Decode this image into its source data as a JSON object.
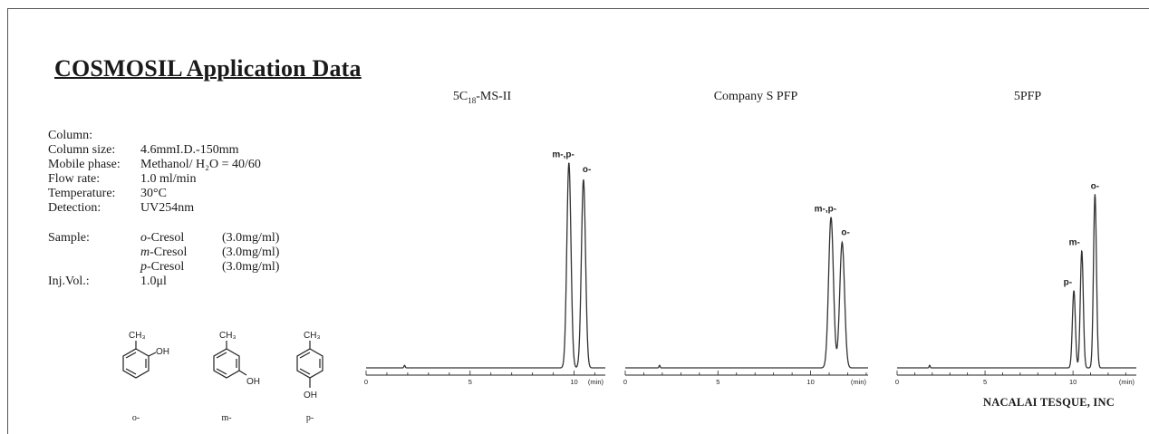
{
  "header": {
    "title": "COSMOSIL Application Data"
  },
  "conditions": {
    "rows": [
      {
        "label": "Column:",
        "value": ""
      },
      {
        "label": "Column size:",
        "value": "4.6mmI.D.-150mm"
      },
      {
        "label": "Mobile phase:",
        "value": "Methanol/ H₂O = 40/60"
      },
      {
        "label": "Flow rate:",
        "value": "1.0 ml/min"
      },
      {
        "label": "Temperature:",
        "value": "30°C"
      },
      {
        "label": "Detection:",
        "value": "UV254nm"
      }
    ],
    "sample_label": "Sample:",
    "samples": [
      {
        "prefix": "o",
        "name": "-Cresol",
        "conc": "(3.0mg/ml)"
      },
      {
        "prefix": "m",
        "name": "-Cresol",
        "conc": "(3.0mg/ml)"
      },
      {
        "prefix": "p",
        "name": "-Cresol",
        "conc": "(3.0mg/ml)"
      }
    ],
    "inj_label": "Inj.Vol.:",
    "inj_value": "1.0μl"
  },
  "structures": {
    "methyl_label": "CH₃",
    "hydroxyl_label": "OH",
    "captions": [
      "o-",
      "m-",
      "p-"
    ]
  },
  "footer": {
    "company": "NACALAI TESQUE, INC"
  },
  "chart_data": [
    {
      "type": "line",
      "title": "5C₁₈-MS-II",
      "xlabel": "(min)",
      "xlim": [
        0,
        11.5
      ],
      "ylim": [
        0,
        1
      ],
      "ticks": [
        0,
        5,
        10
      ],
      "peaks": [
        {
          "label": "m-,p-",
          "rt": 9.75,
          "height": 0.98
        },
        {
          "label": "o-",
          "rt": 10.45,
          "height": 0.9
        }
      ],
      "grid": false
    },
    {
      "type": "line",
      "title": "Company S PFP",
      "xlabel": "(min)",
      "xlim": [
        0,
        13.1
      ],
      "ylim": [
        0,
        1
      ],
      "ticks": [
        0,
        5,
        10
      ],
      "peaks": [
        {
          "label": "m-,p-",
          "rt": 11.1,
          "height": 0.72
        },
        {
          "label": "o-",
          "rt": 11.7,
          "height": 0.6
        }
      ],
      "grid": false
    },
    {
      "type": "line",
      "title": "5PFP",
      "xlabel": "(min)",
      "xlim": [
        0,
        13.6
      ],
      "ylim": [
        0,
        1
      ],
      "ticks": [
        0,
        5,
        10
      ],
      "peaks": [
        {
          "label": "p-",
          "rt": 10.05,
          "height": 0.37
        },
        {
          "label": "m-",
          "rt": 10.5,
          "height": 0.56
        },
        {
          "label": "o-",
          "rt": 11.25,
          "height": 0.83
        }
      ],
      "grid": false
    }
  ]
}
